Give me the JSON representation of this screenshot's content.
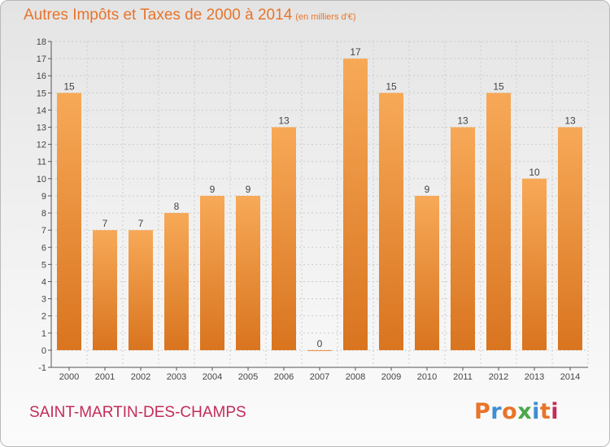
{
  "header": {
    "title": "Autres Impôts et Taxes de 2000 à 2014",
    "unit": "(en milliers d'€)"
  },
  "footer": {
    "commune": "SAINT-MARTIN-DES-CHAMPS",
    "logo_text": "Proxiti"
  },
  "colors": {
    "title": "#e8742a",
    "commune": "#c42c58",
    "bar_top": "#f7a957",
    "bar_bottom": "#d9741f",
    "grid": "#cccccc"
  },
  "chart_data": {
    "type": "bar",
    "categories": [
      "2000",
      "2001",
      "2002",
      "2003",
      "2004",
      "2005",
      "2006",
      "2007",
      "2008",
      "2009",
      "2010",
      "2011",
      "2012",
      "2013",
      "2014"
    ],
    "values": [
      15,
      7,
      7,
      8,
      9,
      9,
      13,
      0,
      17,
      15,
      9,
      13,
      15,
      10,
      13
    ],
    "data_labels": [
      "15",
      "7",
      "7",
      "8",
      "9",
      "9",
      "13",
      "0",
      "17",
      "15",
      "9",
      "13",
      "15",
      "10",
      "13"
    ],
    "y_ticks": [
      "-1",
      "0",
      "1",
      "2",
      "3",
      "4",
      "5",
      "6",
      "7",
      "8",
      "9",
      "10",
      "11",
      "12",
      "13",
      "14",
      "15",
      "16",
      "17",
      "18"
    ],
    "ylim": [
      -1,
      18
    ],
    "grid": true,
    "legend": "none"
  }
}
